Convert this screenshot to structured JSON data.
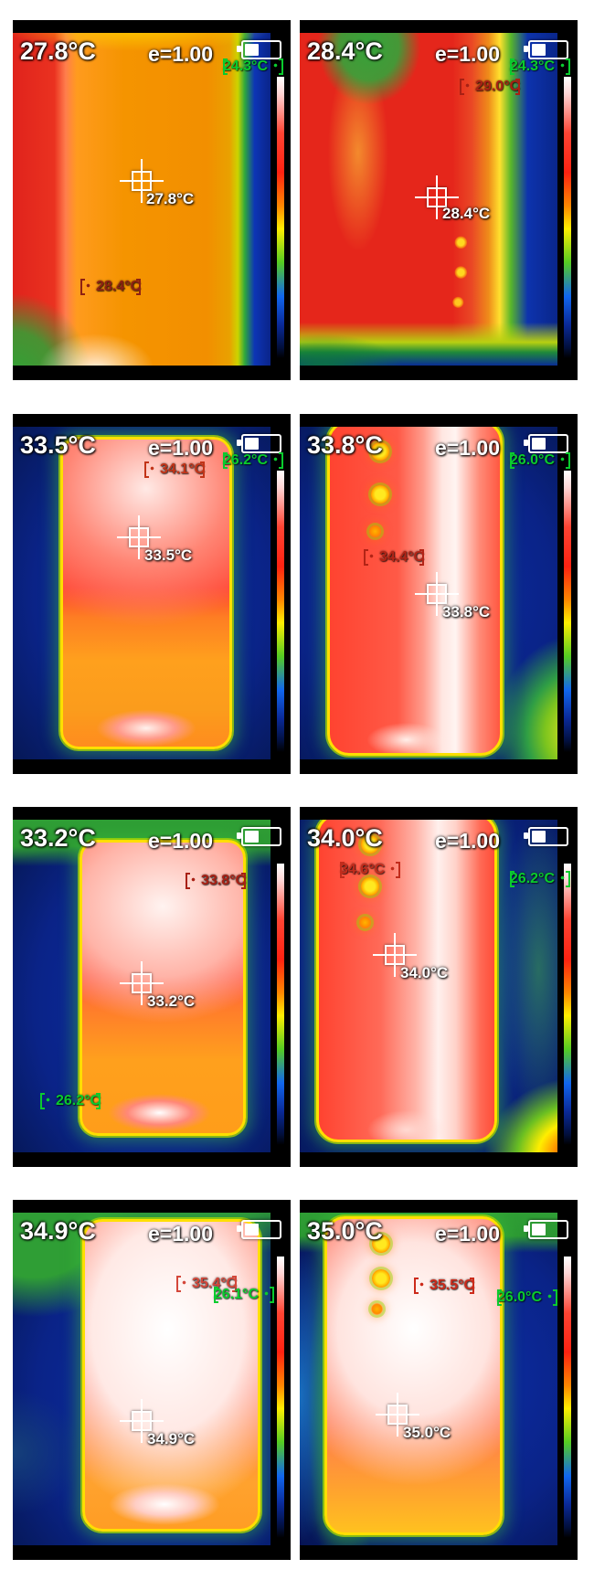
{
  "app": {
    "name": "thermal-camera-capture-grid",
    "grid": {
      "rows": 4,
      "columns": 2,
      "panel_count": 8
    }
  },
  "colors": {
    "min_label_green": "#0acb2e",
    "max_label_red": "#c22c1c",
    "hud_white": "#ffffff",
    "panel_frame": "#000000",
    "page_background": "#ffffff"
  },
  "icons": {
    "battery": "battery-level-icon",
    "min_marker": "bracket-spot-marker",
    "max_marker": "bracket-spot-marker",
    "center": "crosshair-reticle"
  },
  "panels": [
    {
      "main_temp": "27.8°C",
      "emissivity": "e=1.00",
      "center_temp": "27.8°C",
      "min_temp": "24.3°C",
      "max_temp": "28.4°C"
    },
    {
      "main_temp": "28.4°C",
      "emissivity": "e=1.00",
      "center_temp": "28.4°C",
      "min_temp": "24.3°C",
      "max_temp": "29.0°C"
    },
    {
      "main_temp": "33.5°C",
      "emissivity": "e=1.00",
      "center_temp": "33.5°C",
      "min_temp": "26.2°C",
      "max_temp": "34.1°C"
    },
    {
      "main_temp": "33.8°C",
      "emissivity": "e=1.00",
      "center_temp": "33.8°C",
      "min_temp": "26.0°C",
      "max_temp": "34.4°C"
    },
    {
      "main_temp": "33.2°C",
      "emissivity": "e=1.00",
      "center_temp": "33.2°C",
      "min_temp": "26.2°C",
      "max_temp": "33.8°C"
    },
    {
      "main_temp": "34.0°C",
      "emissivity": "e=1.00",
      "center_temp": "34.0°C",
      "min_temp": "26.2°C",
      "max_temp": "34.6°C"
    },
    {
      "main_temp": "34.9°C",
      "emissivity": "e=1.00",
      "center_temp": "34.9°C",
      "min_temp": "26.1°C",
      "max_temp": "35.4°C"
    },
    {
      "main_temp": "35.0°C",
      "emissivity": "e=1.00",
      "center_temp": "35.0°C",
      "min_temp": "26.0°C",
      "max_temp": "35.5°C"
    }
  ]
}
